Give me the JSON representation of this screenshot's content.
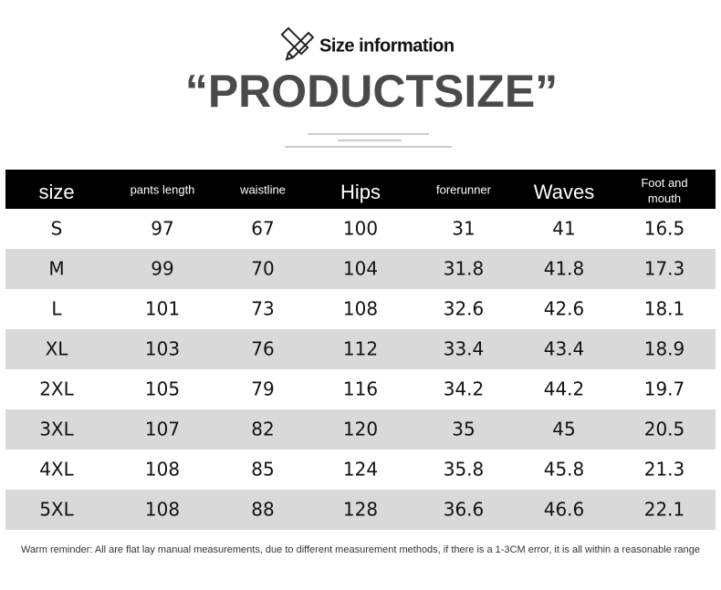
{
  "header": {
    "subtitle": "Size information",
    "title": "“PRODUCTSIZE”"
  },
  "table": {
    "columns": [
      "size",
      "pants length",
      "waistline",
      "Hips",
      "forerunner",
      "Waves",
      "Foot and mouth"
    ],
    "rows": [
      [
        "S",
        97,
        67,
        100,
        31,
        41,
        16.5
      ],
      [
        "M",
        99,
        70,
        104,
        31.8,
        41.8,
        17.3
      ],
      [
        "L",
        101,
        73,
        108,
        32.6,
        42.6,
        18.1
      ],
      [
        "XL",
        103,
        76,
        112,
        33.4,
        43.4,
        18.9
      ],
      [
        "2XL",
        105,
        79,
        116,
        34.2,
        44.2,
        19.7
      ],
      [
        "3XL",
        107,
        82,
        120,
        35,
        45,
        20.5
      ],
      [
        "4XL",
        108,
        85,
        124,
        35.8,
        45.8,
        21.3
      ],
      [
        "5XL",
        108,
        88,
        128,
        36.6,
        46.6,
        22.1
      ]
    ]
  },
  "footer": {
    "note": "Warm reminder: All are flat lay manual measurements, due to different measurement methods, if there is a 1-3CM error, it is all within a reasonable range"
  }
}
